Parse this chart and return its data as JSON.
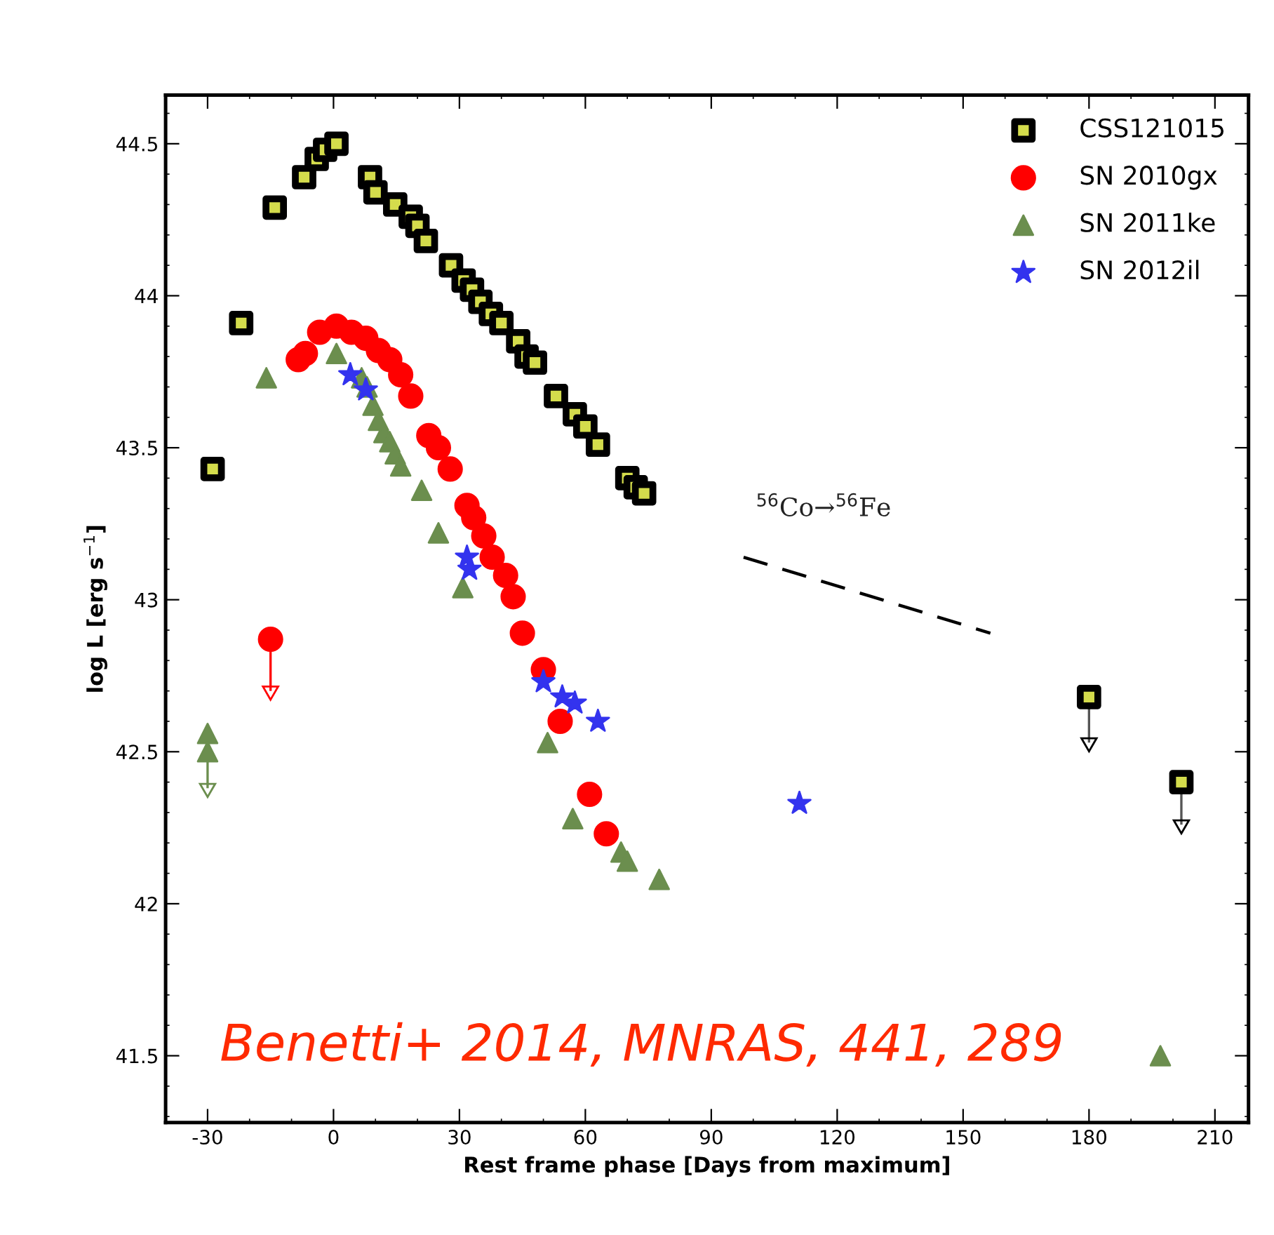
{
  "chart_data": {
    "type": "scatter",
    "xlabel": "Rest frame phase [Days from maximum]",
    "ylabel": "log L [erg s$^{−1}$]",
    "xlim": [
      -40,
      218
    ],
    "ylim": [
      41.28,
      44.66
    ],
    "xticks": [
      -30,
      0,
      30,
      60,
      90,
      120,
      150,
      180,
      210
    ],
    "yticks": [
      41.5,
      42,
      42.5,
      43,
      43.5,
      44,
      44.5
    ],
    "legend": "top right",
    "grid": false,
    "series": [
      {
        "name": "CSS121015",
        "color": "#000000",
        "marker": "square",
        "x": [
          -28.8,
          -22,
          -14,
          -7,
          -4,
          -2,
          0.7,
          8.7,
          10,
          14.7,
          18.4,
          20,
          22,
          28,
          31,
          33,
          35,
          37.5,
          40,
          44,
          46,
          48,
          53,
          57.5,
          60,
          63,
          70,
          72,
          74,
          180,
          202
        ],
        "values": [
          43.43,
          43.91,
          44.29,
          44.39,
          44.45,
          44.48,
          44.5,
          44.39,
          44.34,
          44.3,
          44.26,
          44.23,
          44.18,
          44.1,
          44.05,
          44.02,
          43.98,
          43.94,
          43.91,
          43.85,
          43.8,
          43.78,
          43.67,
          43.61,
          43.57,
          43.51,
          43.4,
          43.37,
          43.35,
          42.68,
          42.4
        ],
        "errors": [
          null,
          null,
          null,
          null,
          null,
          null,
          null,
          null,
          null,
          null,
          null,
          null,
          null,
          null,
          null,
          null,
          null,
          null,
          null,
          null,
          null,
          null,
          null,
          null,
          null,
          null,
          null,
          null,
          null,
          [
            42.53,
            42.68
          ],
          [
            42.26,
            42.4
          ]
        ]
      },
      {
        "name": "SN 2010gx",
        "color": "#ff0000",
        "marker": "circle",
        "x": [
          -15,
          -8.4,
          -6.7,
          -3.3,
          0.7,
          4.3,
          7.7,
          10.7,
          13.4,
          16,
          18.4,
          22.7,
          25,
          27.8,
          31.8,
          33.4,
          35.8,
          37.8,
          41,
          42.8,
          45,
          50,
          54,
          61,
          65
        ],
        "values": [
          42.87,
          43.79,
          43.81,
          43.88,
          43.9,
          43.88,
          43.86,
          43.82,
          43.79,
          43.74,
          43.67,
          43.54,
          43.5,
          43.43,
          43.31,
          43.27,
          43.21,
          43.14,
          43.08,
          43.01,
          42.89,
          42.77,
          42.6,
          42.36,
          42.23
        ],
        "errors": [
          [
            42.7,
            42.87
          ],
          null,
          null,
          null,
          null,
          null,
          null,
          null,
          null,
          null,
          null,
          null,
          null,
          null,
          null,
          null,
          null,
          null,
          null,
          null,
          null,
          null,
          null,
          null,
          null
        ]
      },
      {
        "name": "SN 2011ke",
        "color": "#6b8e4e",
        "marker": "triangle",
        "x": [
          -30,
          -30,
          -16,
          0.7,
          6.7,
          8,
          9.4,
          10.7,
          12,
          13.4,
          14.7,
          16,
          21,
          25,
          30.8,
          51,
          57,
          68.5,
          70,
          77.6,
          197
        ],
        "values": [
          42.56,
          42.5,
          43.73,
          43.81,
          43.73,
          43.7,
          43.64,
          43.59,
          43.55,
          43.52,
          43.48,
          43.44,
          43.36,
          43.22,
          43.04,
          42.53,
          42.28,
          42.17,
          42.14,
          42.08,
          41.5
        ],
        "errors": [
          null,
          [
            42.38,
            42.5
          ],
          null,
          null,
          null,
          null,
          null,
          null,
          null,
          null,
          null,
          null,
          null,
          null,
          null,
          null,
          null,
          null,
          null,
          null,
          null
        ]
      },
      {
        "name": "SN 2012il",
        "color": "#3333ee",
        "marker": "star",
        "x": [
          4,
          7.7,
          31.8,
          32.4,
          50,
          54.5,
          57.5,
          63,
          111
        ],
        "values": [
          43.74,
          43.69,
          43.14,
          43.1,
          42.73,
          42.68,
          42.66,
          42.6,
          42.33
        ]
      },
      {
        "type": "line",
        "color": "#000000",
        "line_style": "dashed",
        "marker": "none",
        "x": [
          97.7,
          156.5
        ],
        "values": [
          43.14,
          42.89
        ]
      }
    ],
    "annotations": [
      "$^{56}$Co→$^{56}$Fe",
      "Benetti+ 2014, MNRAS, 441, 289"
    ]
  }
}
